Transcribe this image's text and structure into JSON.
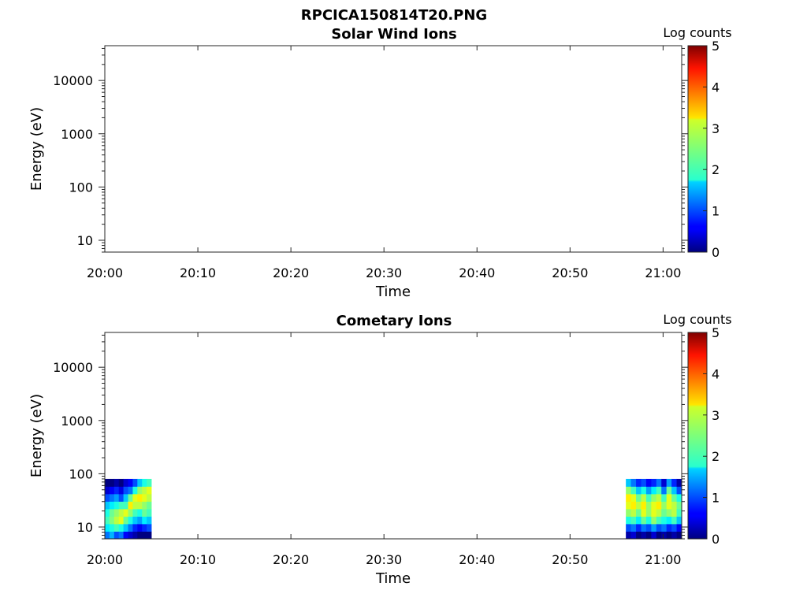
{
  "figure_title": "RPCICA150814T20.PNG",
  "chart_data": [
    {
      "type": "heatmap",
      "title": "Solar Wind Ions",
      "xlabel": "Time",
      "ylabel": "Energy (eV)",
      "x_ticks": [
        "20:00",
        "20:10",
        "20:20",
        "20:30",
        "20:40",
        "20:50",
        "21:00"
      ],
      "x_range": [
        "20:00",
        "21:02"
      ],
      "y_scale": "log",
      "y_ticks": [
        "10",
        "100",
        "1000",
        "10000"
      ],
      "y_range": [
        6,
        45000
      ],
      "colorbar": {
        "label": "Log counts",
        "min": 0,
        "max": 5,
        "ticks": [
          "0",
          "1",
          "2",
          "3",
          "4",
          "5"
        ],
        "colormap": "jet"
      },
      "data_blocks": []
    },
    {
      "type": "heatmap",
      "title": "Cometary Ions",
      "xlabel": "Time",
      "ylabel": "Energy (eV)",
      "x_ticks": [
        "20:00",
        "20:10",
        "20:20",
        "20:30",
        "20:40",
        "20:50",
        "21:00"
      ],
      "x_range": [
        "20:00",
        "21:02"
      ],
      "y_scale": "log",
      "y_ticks": [
        "10",
        "100",
        "1000",
        "10000"
      ],
      "y_range": [
        6,
        45000
      ],
      "colorbar": {
        "label": "Log counts",
        "min": 0,
        "max": 5,
        "ticks": [
          "0",
          "1",
          "2",
          "3",
          "4",
          "5"
        ],
        "colormap": "jet"
      },
      "data_blocks": [
        {
          "t_start": "20:00",
          "t_end": "20:05",
          "e_min": 6,
          "e_max": 80,
          "columns": [
            [
              1.2,
              1.8,
              2.2,
              2.0,
              1.6,
              1.0,
              0.4,
              0.0
            ],
            [
              1.5,
              2.0,
              2.5,
              2.4,
              1.8,
              1.2,
              0.6,
              0.0
            ],
            [
              1.0,
              2.2,
              2.8,
              2.6,
              2.0,
              1.4,
              0.8,
              0.2
            ],
            [
              1.2,
              2.0,
              3.0,
              2.8,
              2.2,
              1.0,
              0.5,
              0.0
            ],
            [
              0.6,
              1.6,
              2.4,
              3.0,
              2.2,
              1.6,
              1.0,
              0.4
            ],
            [
              0.4,
              1.2,
              2.0,
              2.6,
              3.2,
              2.4,
              1.2,
              0.6
            ],
            [
              0.2,
              0.8,
              1.6,
              2.2,
              2.8,
              3.0,
              2.0,
              1.0
            ],
            [
              0.0,
              0.6,
              1.4,
              2.0,
              2.8,
              3.2,
              2.6,
              1.6
            ],
            [
              0.0,
              0.8,
              1.8,
              2.4,
              2.6,
              3.0,
              2.8,
              2.0
            ],
            [
              0.0,
              1.0,
              1.6,
              2.2,
              2.4,
              2.8,
              3.0,
              2.2
            ]
          ]
        },
        {
          "t_start": "20:56",
          "t_end": "21:02",
          "e_min": 6,
          "e_max": 80,
          "columns": [
            [
              0.2,
              1.0,
              2.0,
              2.6,
              3.0,
              3.2,
              2.6,
              1.6
            ],
            [
              0.4,
              1.2,
              2.2,
              2.8,
              3.2,
              3.0,
              2.2,
              1.2
            ],
            [
              0.0,
              0.8,
              1.8,
              2.4,
              2.8,
              2.4,
              1.6,
              0.8
            ],
            [
              0.2,
              1.2,
              2.4,
              3.0,
              3.2,
              2.8,
              2.0,
              1.0
            ],
            [
              0.0,
              1.0,
              2.0,
              2.6,
              2.6,
              2.2,
              1.4,
              0.6
            ],
            [
              0.4,
              1.4,
              2.6,
              3.0,
              3.0,
              2.6,
              1.8,
              0.8
            ],
            [
              0.0,
              1.0,
              2.2,
              2.8,
              3.2,
              2.8,
              2.2,
              1.2
            ],
            [
              0.2,
              1.2,
              2.0,
              2.4,
              2.6,
              2.2,
              1.2,
              0.4
            ],
            [
              0.0,
              0.8,
              1.8,
              2.6,
              3.0,
              3.0,
              2.4,
              1.4
            ],
            [
              0.2,
              1.0,
              2.2,
              2.8,
              2.8,
              2.4,
              1.6,
              0.8
            ],
            [
              0.0,
              0.6,
              1.6,
              2.2,
              2.4,
              2.0,
              1.0,
              0.2
            ]
          ]
        }
      ]
    }
  ]
}
